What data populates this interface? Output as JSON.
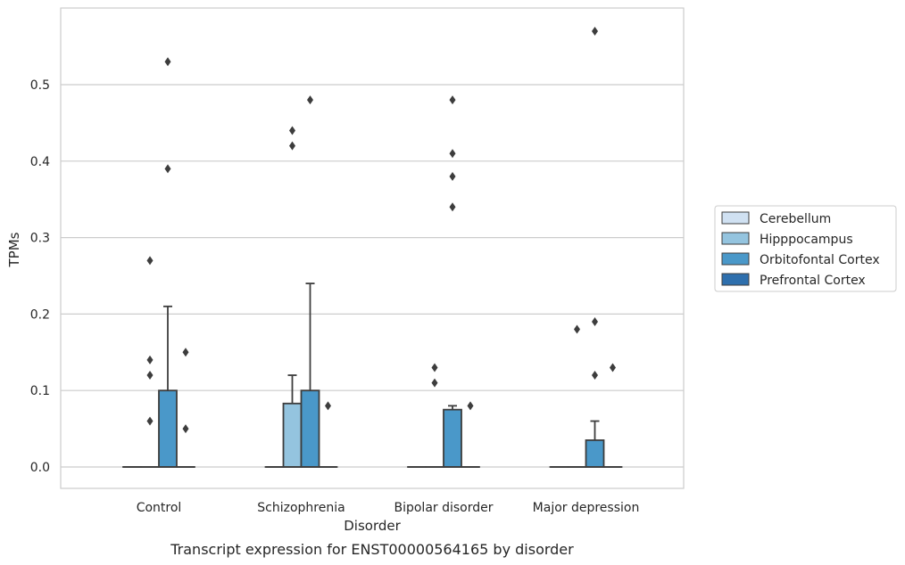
{
  "chart_data": {
    "type": "box",
    "xlabel": "Disorder",
    "ylabel": "TPMs",
    "caption": "Transcript expression for ENST00000564165 by disorder",
    "ylim": [
      -0.028,
      0.6
    ],
    "yticks": [
      "0.0",
      "0.1",
      "0.2",
      "0.3",
      "0.4",
      "0.5"
    ],
    "grid": "horizontal",
    "legend_position": "right",
    "categories": [
      "Control",
      "Schizophrenia",
      "Bipolar disorder",
      "Major depression"
    ],
    "series": [
      {
        "name": "Cerebellum",
        "color": "#d0e1f2"
      },
      {
        "name": "Hipppocampus",
        "color": "#94c4df"
      },
      {
        "name": "Orbitofontal Cortex",
        "color": "#4a98c9"
      },
      {
        "name": "Prefrontal Cortex",
        "color": "#2e6fad"
      }
    ],
    "boxes": [
      [
        {
          "q1": 0,
          "median": 0,
          "q3": 0,
          "whislo": 0,
          "whishi": 0,
          "fliers": []
        },
        {
          "q1": 0,
          "median": 0,
          "q3": 0,
          "whislo": 0,
          "whishi": 0,
          "fliers": [
            0.06,
            0.14,
            0.27,
            0.12
          ]
        },
        {
          "q1": 0,
          "median": 0,
          "q3": 0.1,
          "whislo": 0,
          "whishi": 0.21,
          "fliers": [
            0.53,
            0.39
          ]
        },
        {
          "q1": 0,
          "median": 0,
          "q3": 0,
          "whislo": 0,
          "whishi": 0,
          "fliers": [
            0.15,
            0.05
          ]
        }
      ],
      [
        {
          "q1": 0,
          "median": 0,
          "q3": 0,
          "whislo": 0,
          "whishi": 0,
          "fliers": []
        },
        {
          "q1": 0,
          "median": 0,
          "q3": 0.083,
          "whislo": 0,
          "whishi": 0.12,
          "fliers": [
            0.44,
            0.42
          ]
        },
        {
          "q1": 0,
          "median": 0,
          "q3": 0.1,
          "whislo": 0,
          "whishi": 0.24,
          "fliers": [
            0.48
          ]
        },
        {
          "q1": 0,
          "median": 0,
          "q3": 0,
          "whislo": 0,
          "whishi": 0,
          "fliers": [
            0.08
          ]
        }
      ],
      [
        {
          "q1": 0,
          "median": 0,
          "q3": 0,
          "whislo": 0,
          "whishi": 0,
          "fliers": []
        },
        {
          "q1": 0,
          "median": 0,
          "q3": 0,
          "whislo": 0,
          "whishi": 0,
          "fliers": [
            0.13,
            0.11
          ]
        },
        {
          "q1": 0,
          "median": 0,
          "q3": 0.075,
          "whislo": 0,
          "whishi": 0.08,
          "fliers": [
            0.34,
            0.48,
            0.41,
            0.38
          ]
        },
        {
          "q1": 0,
          "median": 0,
          "q3": 0,
          "whislo": 0,
          "whishi": 0,
          "fliers": [
            0.08
          ]
        }
      ],
      [
        {
          "q1": 0,
          "median": 0,
          "q3": 0,
          "whislo": 0,
          "whishi": 0,
          "fliers": []
        },
        {
          "q1": 0,
          "median": 0,
          "q3": 0,
          "whislo": 0,
          "whishi": 0,
          "fliers": [
            0.18
          ]
        },
        {
          "q1": 0,
          "median": 0,
          "q3": 0.035,
          "whislo": 0,
          "whishi": 0.06,
          "fliers": [
            0.57,
            0.19,
            0.12
          ]
        },
        {
          "q1": 0,
          "median": 0,
          "q3": 0,
          "whislo": 0,
          "whishi": 0,
          "fliers": [
            0.13
          ]
        }
      ]
    ]
  }
}
